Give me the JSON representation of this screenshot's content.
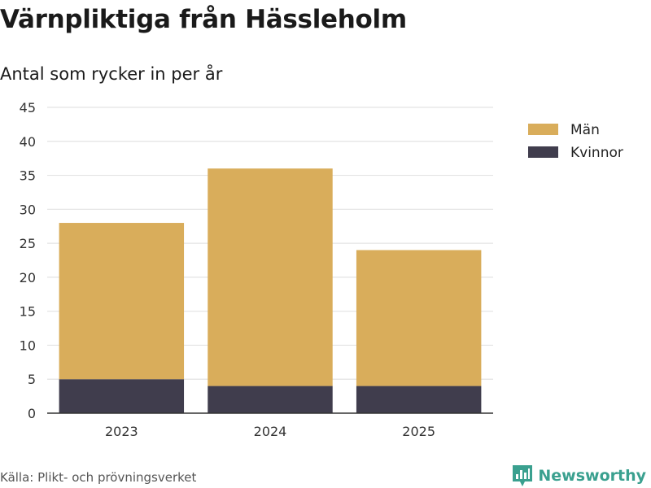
{
  "header": {
    "title": "Värnpliktiga från Hässleholm",
    "subtitle": "Antal som rycker in per år"
  },
  "footer": {
    "source": "Källa: Plikt- och prövningsverket",
    "brand": "Newsworthy"
  },
  "colors": {
    "man": "#d9ad5b",
    "kvinnor": "#403d4d",
    "grid": "#e3e3e3",
    "axis": "#333333",
    "brand": "#3aa08f"
  },
  "chart_data": {
    "type": "bar",
    "stacked": true,
    "title": "Värnpliktiga från Hässleholm",
    "subtitle": "Antal som rycker in per år",
    "xlabel": "",
    "ylabel": "",
    "categories": [
      "2023",
      "2024",
      "2025"
    ],
    "series": [
      {
        "name": "Kvinnor",
        "values": [
          5,
          4,
          4
        ]
      },
      {
        "name": "Män",
        "values": [
          23,
          32,
          20
        ]
      }
    ],
    "ylim": [
      0,
      45
    ],
    "yticks": [
      0,
      5,
      10,
      15,
      20,
      25,
      30,
      35,
      40,
      45
    ],
    "grid": true,
    "legend": "top-right",
    "legend_order": [
      "Män",
      "Kvinnor"
    ]
  }
}
